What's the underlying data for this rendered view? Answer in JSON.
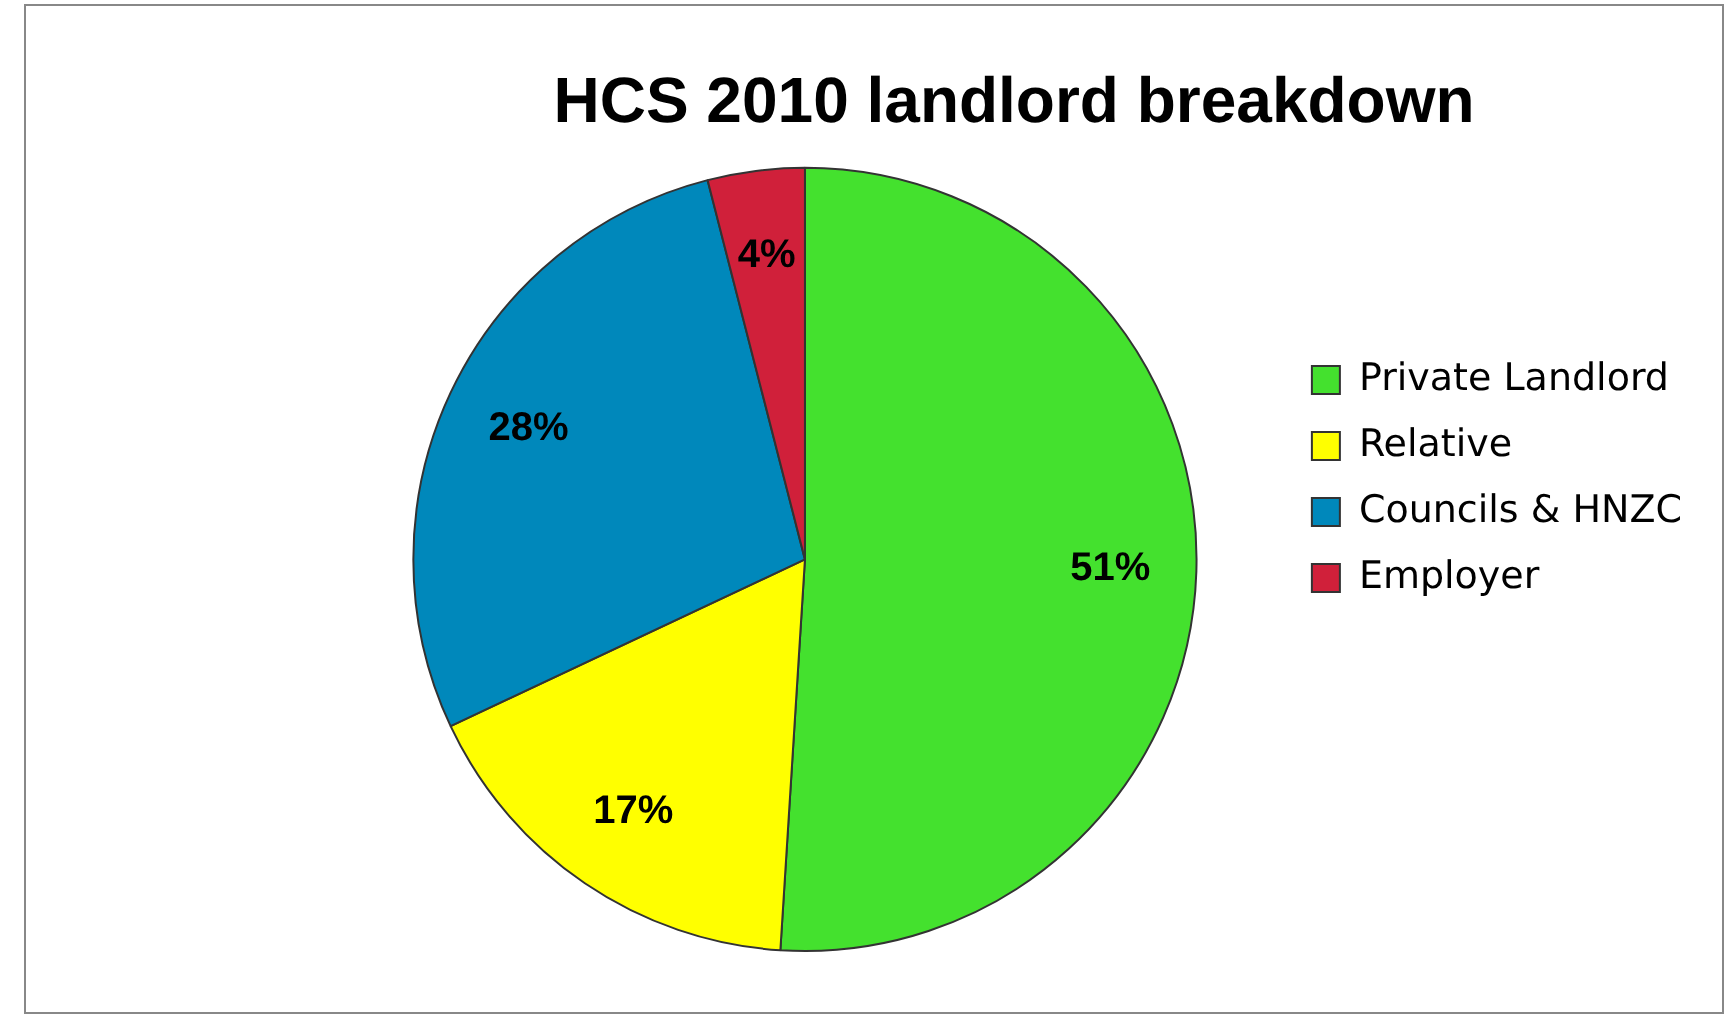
{
  "chart_data": {
    "type": "pie",
    "title": "HCS 2010 landlord breakdown",
    "categories": [
      "Private Landlord",
      "Relative",
      "Councils & HNZC",
      "Employer"
    ],
    "values": [
      51,
      17,
      28,
      4
    ],
    "colors": [
      "#44e12e",
      "#ffff00",
      "#0088bb",
      "#d0203a"
    ],
    "value_labels": [
      "51%",
      "17%",
      "28%",
      "4%"
    ],
    "legend": "right"
  }
}
